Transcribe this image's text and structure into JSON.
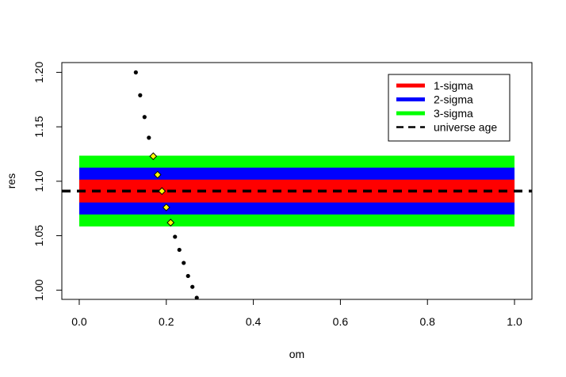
{
  "chart_data": {
    "type": "scatter",
    "title": "",
    "xlabel": "om",
    "ylabel": "res",
    "xlim": [
      -0.04,
      1.04
    ],
    "ylim": [
      0.9915,
      1.209
    ],
    "x_ticks": [
      "0.0",
      "0.2",
      "0.4",
      "0.6",
      "0.8",
      "1.0"
    ],
    "y_ticks": [
      "1.00",
      "1.05",
      "1.10",
      "1.15",
      "1.20"
    ],
    "bands": [
      {
        "name": "3-sigma",
        "color": "#00ff00",
        "x": [
          0,
          1
        ],
        "y": [
          1.0585,
          1.1235
        ]
      },
      {
        "name": "2-sigma",
        "color": "#0000ff",
        "x": [
          0,
          1
        ],
        "y": [
          1.0695,
          1.1125
        ]
      },
      {
        "name": "1-sigma",
        "color": "#ff0000",
        "x": [
          0,
          1
        ],
        "y": [
          1.0805,
          1.1015
        ]
      }
    ],
    "reference_line": {
      "name": "universe age",
      "y": 1.091,
      "color": "#000000",
      "style": "dashed"
    },
    "series": [
      {
        "name": "res",
        "points": [
          {
            "x": 0.13,
            "y": 1.2,
            "highlight": false
          },
          {
            "x": 0.14,
            "y": 1.179,
            "highlight": false
          },
          {
            "x": 0.15,
            "y": 1.159,
            "highlight": false
          },
          {
            "x": 0.16,
            "y": 1.14,
            "highlight": false
          },
          {
            "x": 0.17,
            "y": 1.123,
            "highlight": true
          },
          {
            "x": 0.18,
            "y": 1.106,
            "highlight": true
          },
          {
            "x": 0.19,
            "y": 1.091,
            "highlight": true
          },
          {
            "x": 0.2,
            "y": 1.076,
            "highlight": true
          },
          {
            "x": 0.21,
            "y": 1.062,
            "highlight": true
          },
          {
            "x": 0.22,
            "y": 1.049,
            "highlight": false
          },
          {
            "x": 0.23,
            "y": 1.037,
            "highlight": false
          },
          {
            "x": 0.24,
            "y": 1.025,
            "highlight": false
          },
          {
            "x": 0.25,
            "y": 1.013,
            "highlight": false
          },
          {
            "x": 0.26,
            "y": 1.003,
            "highlight": false
          },
          {
            "x": 0.27,
            "y": 0.993,
            "highlight": false
          }
        ]
      }
    ],
    "legend": {
      "position": "top-right",
      "entries": [
        {
          "label": "1-sigma",
          "color": "#ff0000",
          "style": "solid"
        },
        {
          "label": "2-sigma",
          "color": "#0000ff",
          "style": "solid"
        },
        {
          "label": "3-sigma",
          "color": "#00ff00",
          "style": "solid"
        },
        {
          "label": "universe age",
          "color": "#000000",
          "style": "dashed"
        }
      ]
    },
    "grid": false,
    "colors": {
      "highlight_point_fill": "#ffff00",
      "point": "#000000"
    }
  }
}
